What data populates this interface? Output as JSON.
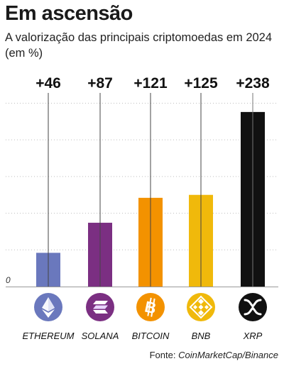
{
  "title": "Em ascensão",
  "subtitle": "A valorização das principais criptomoedas em 2024 (em %)",
  "source": {
    "prefix": "Fonte:",
    "name": "CoinMarketCap/Binance"
  },
  "chart_data": {
    "type": "bar",
    "categories": [
      "ETHEREUM",
      "SOLANA",
      "BITCOIN",
      "BNB",
      "XRP"
    ],
    "values": [
      46,
      87,
      121,
      125,
      238
    ],
    "value_labels": [
      "+46",
      "+87",
      "+121",
      "+125",
      "+238"
    ],
    "ylim": [
      0,
      264
    ],
    "zero_label": "0",
    "grid": true,
    "colors": [
      "#6a78bd",
      "#7b2f82",
      "#f39200",
      "#f0b90b",
      "#111111"
    ],
    "icons": [
      "ethereum-icon",
      "solana-icon",
      "bitcoin-icon",
      "bnb-icon",
      "xrp-icon"
    ]
  }
}
